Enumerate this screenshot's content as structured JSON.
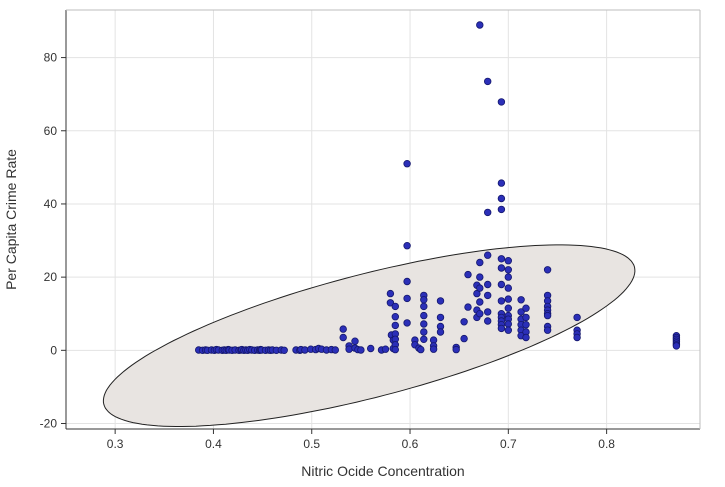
{
  "chart_data": {
    "type": "scatter",
    "title": "",
    "xlabel": "Nitric Ocide Concentration",
    "ylabel": "Per Capita Crime Rate",
    "xlim": [
      0.25,
      0.895
    ],
    "ylim": [
      -21.5,
      93
    ],
    "x_ticks": [
      0.3,
      0.4,
      0.5,
      0.6,
      0.7,
      0.8
    ],
    "y_ticks": [
      -20,
      0,
      20,
      40,
      60,
      80
    ],
    "x_tick_labels": [
      "0.3",
      "0.4",
      "0.5",
      "0.6",
      "0.7",
      "0.8"
    ],
    "y_tick_labels": [
      "-20",
      "0",
      "20",
      "40",
      "60",
      "80"
    ],
    "grid": true,
    "colors": {
      "point_fill": "#2b2fb8",
      "point_stroke": "#15186e",
      "ellipse_fill": "#e8e4e1",
      "ellipse_stroke": "#222222",
      "grid": "#e3e3e3",
      "axis": "#333333"
    },
    "ellipse": {
      "center": [
        0.5584,
        4.0
      ],
      "semi_axis_major": 0.2788,
      "semi_axis_minor": 16.8,
      "note_axes_in_data_units": true,
      "angle_deg": -14.5
    },
    "points": [
      [
        0.385,
        0.1
      ],
      [
        0.389,
        0.0
      ],
      [
        0.392,
        0.1
      ],
      [
        0.394,
        0.0
      ],
      [
        0.398,
        0.1
      ],
      [
        0.401,
        0.0
      ],
      [
        0.403,
        0.2
      ],
      [
        0.405,
        0.1
      ],
      [
        0.409,
        0.0
      ],
      [
        0.411,
        0.1
      ],
      [
        0.413,
        0.0
      ],
      [
        0.415,
        0.2
      ],
      [
        0.416,
        0.1
      ],
      [
        0.419,
        0.0
      ],
      [
        0.422,
        0.1
      ],
      [
        0.426,
        0.0
      ],
      [
        0.428,
        0.1
      ],
      [
        0.429,
        0.2
      ],
      [
        0.431,
        0.0
      ],
      [
        0.433,
        0.1
      ],
      [
        0.435,
        0.0
      ],
      [
        0.437,
        0.2
      ],
      [
        0.439,
        0.1
      ],
      [
        0.442,
        0.0
      ],
      [
        0.445,
        0.1
      ],
      [
        0.447,
        0.0
      ],
      [
        0.448,
        0.2
      ],
      [
        0.449,
        0.1
      ],
      [
        0.453,
        0.0
      ],
      [
        0.456,
        0.1
      ],
      [
        0.458,
        0.0
      ],
      [
        0.46,
        0.1
      ],
      [
        0.464,
        0.0
      ],
      [
        0.469,
        0.1
      ],
      [
        0.472,
        0.0
      ],
      [
        0.484,
        0.1
      ],
      [
        0.488,
        0.0
      ],
      [
        0.489,
        0.2
      ],
      [
        0.493,
        0.1
      ],
      [
        0.499,
        0.3
      ],
      [
        0.504,
        0.2
      ],
      [
        0.507,
        0.5
      ],
      [
        0.51,
        0.3
      ],
      [
        0.515,
        0.1
      ],
      [
        0.52,
        0.2
      ],
      [
        0.524,
        0.1
      ],
      [
        0.532,
        5.8
      ],
      [
        0.532,
        3.5
      ],
      [
        0.538,
        1.2
      ],
      [
        0.538,
        0.3
      ],
      [
        0.544,
        2.5
      ],
      [
        0.544,
        0.6
      ],
      [
        0.547,
        0.2
      ],
      [
        0.55,
        0.1
      ],
      [
        0.56,
        0.5
      ],
      [
        0.571,
        0.1
      ],
      [
        0.575,
        0.3
      ],
      [
        0.58,
        15.5
      ],
      [
        0.58,
        13.0
      ],
      [
        0.581,
        4.2
      ],
      [
        0.583,
        2.8
      ],
      [
        0.583,
        0.5
      ],
      [
        0.585,
        12.0
      ],
      [
        0.585,
        9.2
      ],
      [
        0.585,
        6.8
      ],
      [
        0.585,
        4.5
      ],
      [
        0.585,
        3.0
      ],
      [
        0.585,
        1.5
      ],
      [
        0.585,
        0.2
      ],
      [
        0.597,
        51.0
      ],
      [
        0.597,
        28.6
      ],
      [
        0.597,
        18.8
      ],
      [
        0.597,
        14.2
      ],
      [
        0.597,
        7.5
      ],
      [
        0.605,
        2.8
      ],
      [
        0.605,
        1.5
      ],
      [
        0.609,
        0.6
      ],
      [
        0.611,
        0.2
      ],
      [
        0.614,
        15.0
      ],
      [
        0.614,
        13.8
      ],
      [
        0.614,
        12.0
      ],
      [
        0.614,
        9.5
      ],
      [
        0.614,
        7.2
      ],
      [
        0.614,
        5.0
      ],
      [
        0.614,
        3.0
      ],
      [
        0.624,
        2.8
      ],
      [
        0.624,
        1.2
      ],
      [
        0.624,
        0.3
      ],
      [
        0.631,
        13.5
      ],
      [
        0.631,
        9.0
      ],
      [
        0.631,
        6.5
      ],
      [
        0.631,
        5.0
      ],
      [
        0.647,
        0.8
      ],
      [
        0.647,
        0.2
      ],
      [
        0.655,
        7.8
      ],
      [
        0.655,
        3.2
      ],
      [
        0.659,
        20.7
      ],
      [
        0.659,
        11.8
      ],
      [
        0.668,
        17.8
      ],
      [
        0.668,
        15.5
      ],
      [
        0.668,
        11.0
      ],
      [
        0.668,
        9.0
      ],
      [
        0.671,
        88.9
      ],
      [
        0.671,
        24.0
      ],
      [
        0.671,
        20.0
      ],
      [
        0.671,
        17.0
      ],
      [
        0.671,
        13.2
      ],
      [
        0.671,
        10.0
      ],
      [
        0.679,
        73.5
      ],
      [
        0.679,
        37.7
      ],
      [
        0.679,
        26.0
      ],
      [
        0.679,
        18.0
      ],
      [
        0.679,
        15.0
      ],
      [
        0.679,
        10.5
      ],
      [
        0.679,
        8.0
      ],
      [
        0.693,
        67.9
      ],
      [
        0.693,
        45.7
      ],
      [
        0.693,
        41.5
      ],
      [
        0.693,
        38.5
      ],
      [
        0.693,
        25.0
      ],
      [
        0.693,
        22.5
      ],
      [
        0.693,
        18.0
      ],
      [
        0.693,
        13.5
      ],
      [
        0.693,
        10.0
      ],
      [
        0.693,
        9.0
      ],
      [
        0.693,
        8.0
      ],
      [
        0.693,
        7.0
      ],
      [
        0.693,
        6.0
      ],
      [
        0.7,
        24.5
      ],
      [
        0.7,
        22.0
      ],
      [
        0.7,
        20.0
      ],
      [
        0.7,
        17.0
      ],
      [
        0.7,
        14.0
      ],
      [
        0.7,
        11.5
      ],
      [
        0.7,
        9.5
      ],
      [
        0.7,
        8.5
      ],
      [
        0.7,
        7.2
      ],
      [
        0.7,
        5.5
      ],
      [
        0.713,
        13.8
      ],
      [
        0.713,
        10.5
      ],
      [
        0.713,
        8.5
      ],
      [
        0.713,
        7.0
      ],
      [
        0.713,
        5.5
      ],
      [
        0.713,
        4.0
      ],
      [
        0.718,
        11.5
      ],
      [
        0.718,
        9.0
      ],
      [
        0.718,
        7.0
      ],
      [
        0.718,
        5.0
      ],
      [
        0.718,
        3.5
      ],
      [
        0.74,
        22.0
      ],
      [
        0.74,
        15.0
      ],
      [
        0.74,
        13.5
      ],
      [
        0.74,
        12.0
      ],
      [
        0.74,
        11.0
      ],
      [
        0.74,
        10.0
      ],
      [
        0.74,
        9.5
      ],
      [
        0.74,
        6.5
      ],
      [
        0.74,
        5.5
      ],
      [
        0.77,
        9.0
      ],
      [
        0.77,
        5.5
      ],
      [
        0.77,
        4.5
      ],
      [
        0.77,
        3.5
      ],
      [
        0.871,
        4.0
      ],
      [
        0.871,
        3.5
      ],
      [
        0.871,
        3.0
      ],
      [
        0.871,
        2.5
      ],
      [
        0.871,
        2.0
      ],
      [
        0.871,
        1.5
      ],
      [
        0.871,
        1.2
      ]
    ]
  }
}
